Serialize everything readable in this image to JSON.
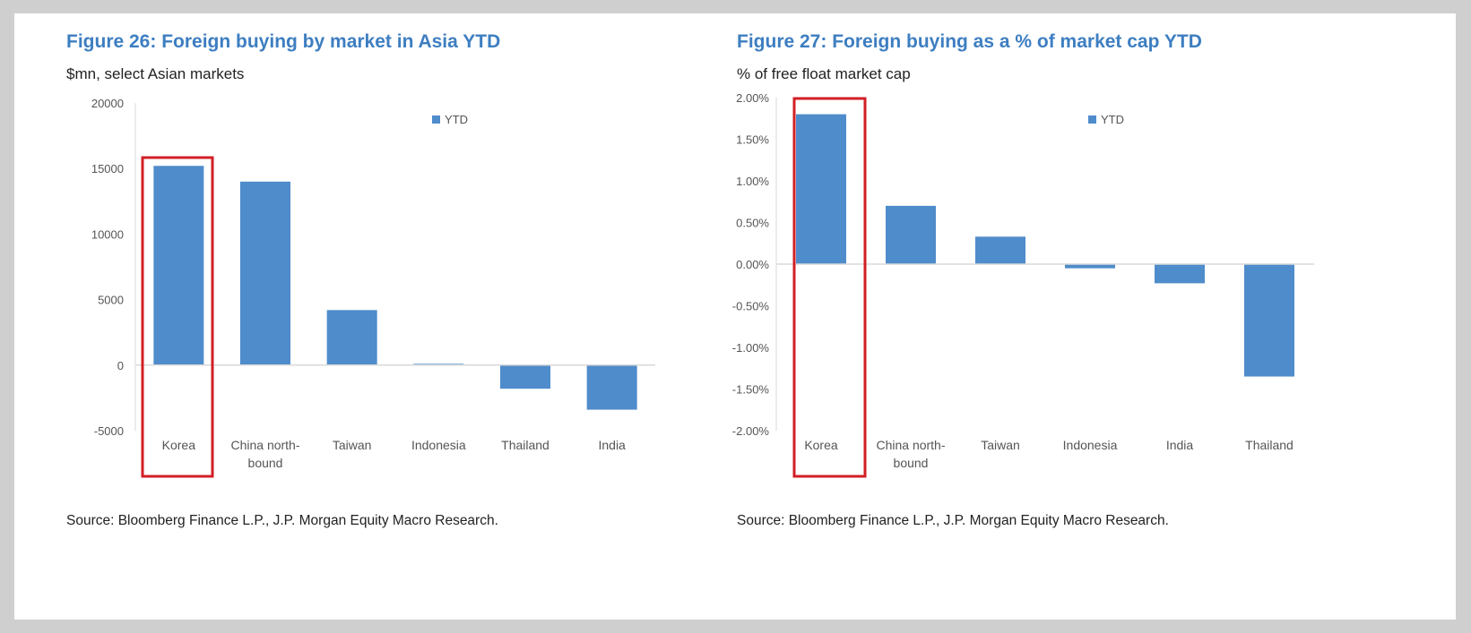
{
  "colors": {
    "bar": "#4f8ccb",
    "highlight": "#d21f25",
    "title": "#3d7ec1",
    "axis": "#d9d9d9"
  },
  "figures": [
    {
      "title": "Figure 26: Foreign buying by market in Asia YTD",
      "subtitle": "$mn, select Asian markets",
      "source": "Source: Bloomberg Finance L.P., J.P. Morgan Equity Macro Research.",
      "legend": "YTD",
      "highlighted_category": "Korea"
    },
    {
      "title": "Figure 27: Foreign buying as a % of market cap YTD",
      "subtitle": "% of free float market cap",
      "source": "Source: Bloomberg Finance L.P., J.P. Morgan Equity Macro Research.",
      "legend": "YTD",
      "highlighted_category": "Korea"
    }
  ],
  "chart_data": [
    {
      "type": "bar",
      "title": "Figure 26: Foreign buying by market in Asia YTD",
      "subtitle": "$mn, select Asian markets",
      "categories": [
        [
          "Korea"
        ],
        [
          "China north-",
          "bound"
        ],
        [
          "Taiwan"
        ],
        [
          "Indonesia"
        ],
        [
          "Thailand"
        ],
        [
          "India"
        ]
      ],
      "series": [
        {
          "name": "YTD",
          "values": [
            15200,
            14000,
            4200,
            100,
            -1800,
            -3400
          ]
        }
      ],
      "ylim": [
        -5000,
        20000
      ],
      "yticks": [
        20000,
        15000,
        10000,
        5000,
        0,
        -5000
      ],
      "ytick_labels": [
        "20000",
        "15000",
        "10000",
        "5000",
        "0",
        "-5000"
      ],
      "legend_position": "top-right",
      "grid": false
    },
    {
      "type": "bar",
      "title": "Figure 27: Foreign buying as a % of market cap YTD",
      "subtitle": "% of free float market cap",
      "categories": [
        [
          "Korea"
        ],
        [
          "China north-",
          "bound"
        ],
        [
          "Taiwan"
        ],
        [
          "Indonesia"
        ],
        [
          "India"
        ],
        [
          "Thailand"
        ]
      ],
      "series": [
        {
          "name": "YTD",
          "values": [
            1.8,
            0.7,
            0.33,
            -0.05,
            -0.23,
            -1.35
          ]
        }
      ],
      "ylim": [
        -2.0,
        2.0
      ],
      "yticks": [
        2.0,
        1.5,
        1.0,
        0.5,
        0.0,
        -0.5,
        -1.0,
        -1.5,
        -2.0
      ],
      "ytick_labels": [
        "2.00%",
        "1.50%",
        "1.00%",
        "0.50%",
        "0.00%",
        "-0.50%",
        "-1.00%",
        "-1.50%",
        "-2.00%"
      ],
      "legend_position": "top-right",
      "grid": false
    }
  ]
}
